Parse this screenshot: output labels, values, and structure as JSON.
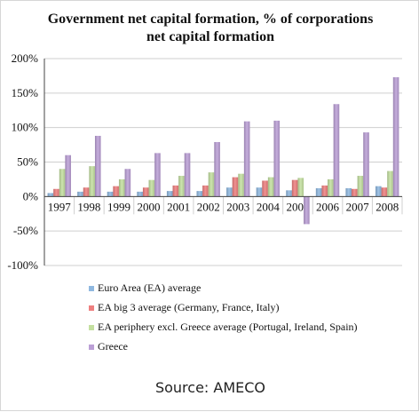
{
  "chart_data": {
    "type": "bar",
    "title_lines": [
      "Government net capital formation, % of corporations",
      "net capital formation"
    ],
    "categories": [
      "1997",
      "1998",
      "1999",
      "2000",
      "2001",
      "2002",
      "2003",
      "2004",
      "2005",
      "2006",
      "2007",
      "2008"
    ],
    "ytick_labels": [
      "200%",
      "150%",
      "100%",
      "50%",
      "0%",
      "-50%",
      "-100%"
    ],
    "ytick_values": [
      200,
      150,
      100,
      50,
      0,
      -50,
      -100
    ],
    "ylim": [
      -100,
      200
    ],
    "unit": "%",
    "grid": true,
    "legend_position": "bottom",
    "series": [
      {
        "name": "Euro Area (EA) average",
        "color": "#8fb8e0",
        "values": [
          5,
          7,
          7,
          7,
          8,
          8,
          13,
          13,
          9,
          12,
          12,
          15
        ]
      },
      {
        "name": "EA big 3 average (Germany, France, Italy)",
        "color": "#ee7f7f",
        "values": [
          11,
          13,
          15,
          13,
          16,
          16,
          28,
          23,
          24,
          16,
          11,
          13
        ]
      },
      {
        "name": "EA periphery excl. Greece average (Portugal, Ireland, Spain)",
        "color": "#c4e0a0",
        "values": [
          40,
          44,
          25,
          24,
          30,
          35,
          33,
          28,
          27,
          25,
          30,
          37
        ]
      },
      {
        "name": "Greece",
        "color": "#bb9fd6",
        "values": [
          60,
          88,
          40,
          63,
          63,
          79,
          109,
          110,
          -40,
          134,
          93,
          173
        ]
      }
    ],
    "source": "Source: AMECO"
  }
}
